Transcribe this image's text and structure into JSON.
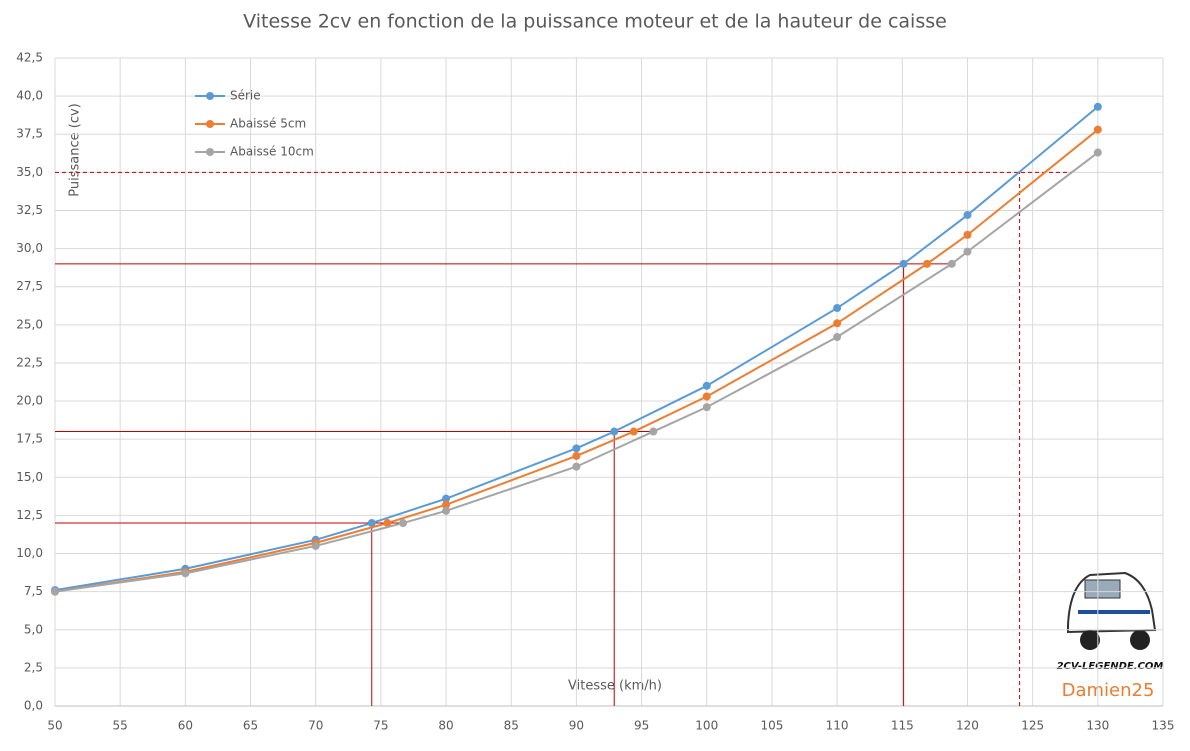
{
  "chart_data": {
    "type": "line",
    "title": "Vitesse 2cv en fonction de la puissance moteur et de la hauteur de caisse",
    "x_label": "Vitesse (km/h)",
    "y_label": "Puissance (cv)",
    "series": [
      {
        "name": "Série",
        "color": "#5b9bd5",
        "x": [
          50,
          60,
          70,
          74.3,
          80,
          90,
          92.9,
          100,
          110,
          115.1,
          120,
          130
        ],
        "values": [
          7.6,
          9.0,
          10.9,
          12.0,
          13.6,
          16.9,
          18.0,
          21.0,
          26.1,
          29.0,
          32.2,
          39.3
        ]
      },
      {
        "name": "Abaissé 5cm",
        "color": "#ed7d31",
        "x": [
          50,
          60,
          70,
          75.5,
          80,
          90,
          94.4,
          100,
          110,
          116.9,
          120,
          130
        ],
        "values": [
          7.5,
          8.8,
          10.7,
          12.0,
          13.2,
          16.4,
          18.0,
          20.3,
          25.1,
          29.0,
          30.9,
          37.8
        ]
      },
      {
        "name": "Abaissé 10cm",
        "color": "#a5a5a5",
        "x": [
          50,
          60,
          70,
          76.7,
          80,
          90,
          95.9,
          100,
          110,
          118.8,
          120,
          130
        ],
        "values": [
          7.5,
          8.7,
          10.5,
          12.0,
          12.8,
          15.7,
          18.0,
          19.6,
          24.2,
          29.0,
          29.8,
          36.3
        ]
      }
    ],
    "reference_lines": [
      {
        "x": 74.3,
        "y": 12.0,
        "x_end": 77,
        "dashed": false
      },
      {
        "x": 92.9,
        "y": 18.0,
        "x_end": 96,
        "dashed": false
      },
      {
        "x": 115.1,
        "y": 29.0,
        "x_end": 119,
        "dashed": false
      },
      {
        "x": 124,
        "y": 35.0,
        "x_end": 128,
        "dashed": true
      }
    ],
    "reference_color": "#c00000",
    "xlim": [
      50,
      135
    ],
    "xticks": [
      50,
      55,
      60,
      65,
      70,
      75,
      80,
      85,
      90,
      95,
      100,
      105,
      110,
      115,
      120,
      125,
      130,
      135
    ],
    "ylim": [
      0,
      42.5
    ],
    "yticks": [
      {
        "value": 0,
        "label": "0,0"
      },
      {
        "value": 2.5,
        "label": "2,5"
      },
      {
        "value": 5,
        "label": "5,0"
      },
      {
        "value": 7.5,
        "label": "7,5"
      },
      {
        "value": 10,
        "label": "10,0"
      },
      {
        "value": 12.5,
        "label": "12,5"
      },
      {
        "value": 15,
        "label": "15,0"
      },
      {
        "value": 17.5,
        "label": "17,5"
      },
      {
        "value": 20,
        "label": "20,0"
      },
      {
        "value": 22.5,
        "label": "22,5"
      },
      {
        "value": 25,
        "label": "25,0"
      },
      {
        "value": 27.5,
        "label": "27,5"
      },
      {
        "value": 30,
        "label": "30,0"
      },
      {
        "value": 32.5,
        "label": "32,5"
      },
      {
        "value": 35,
        "label": "35,0"
      },
      {
        "value": 37.5,
        "label": "37,5"
      },
      {
        "value": 40,
        "label": "40,0"
      },
      {
        "value": 42.5,
        "label": "42,5"
      }
    ],
    "grid": true,
    "legend": "top-left",
    "logo_text": "2CV-LEGENDE.COM",
    "author": "Damien25"
  }
}
